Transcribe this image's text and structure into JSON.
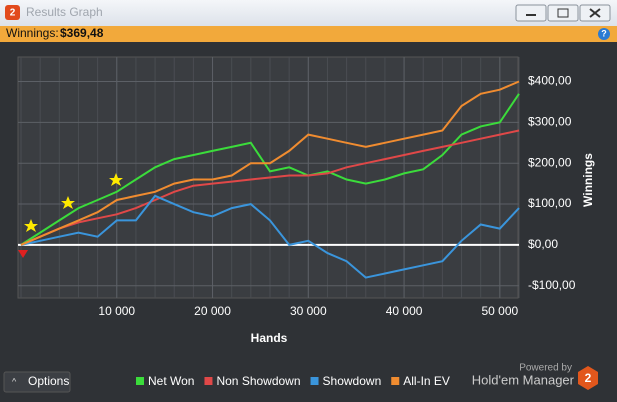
{
  "window": {
    "title": "Results Graph"
  },
  "summary": {
    "label": "Winnings:",
    "value": "$369,48"
  },
  "footer": {
    "options": "Options",
    "powered": "Powered by",
    "brand": "Hold'em Manager"
  },
  "chart_data": {
    "type": "line",
    "xlabel": "Hands",
    "ylabel": "Winnings",
    "x": [
      0,
      2000,
      4000,
      6000,
      8000,
      10000,
      12000,
      14000,
      16000,
      18000,
      20000,
      22000,
      24000,
      26000,
      28000,
      30000,
      32000,
      34000,
      36000,
      38000,
      40000,
      42000,
      44000,
      46000,
      48000,
      50000,
      52000
    ],
    "series": [
      {
        "name": "Net Won",
        "color": "#3bdc3b",
        "values": [
          0,
          30,
          60,
          90,
          110,
          130,
          160,
          190,
          210,
          220,
          230,
          240,
          250,
          180,
          190,
          170,
          180,
          160,
          150,
          160,
          175,
          185,
          220,
          270,
          290,
          300,
          370
        ]
      },
      {
        "name": "Non Showdown",
        "color": "#e04848",
        "values": [
          0,
          20,
          40,
          55,
          65,
          75,
          90,
          110,
          130,
          145,
          150,
          155,
          160,
          165,
          170,
          170,
          175,
          190,
          200,
          210,
          220,
          230,
          240,
          250,
          260,
          270,
          280
        ]
      },
      {
        "name": "Showdown",
        "color": "#3a95dc",
        "values": [
          0,
          10,
          20,
          30,
          20,
          60,
          60,
          120,
          100,
          80,
          70,
          90,
          100,
          60,
          0,
          10,
          -20,
          -40,
          -80,
          -70,
          -60,
          -50,
          -40,
          10,
          50,
          40,
          90
        ]
      },
      {
        "name": "All-In EV",
        "color": "#f08c30",
        "values": [
          0,
          20,
          40,
          60,
          80,
          110,
          120,
          130,
          150,
          160,
          160,
          170,
          200,
          200,
          230,
          270,
          260,
          250,
          240,
          250,
          260,
          270,
          280,
          340,
          370,
          380,
          400
        ]
      }
    ],
    "xlim": [
      0,
      52000
    ],
    "xticks": [
      {
        "value": 10000,
        "label": "10 000"
      },
      {
        "value": 20000,
        "label": "20 000"
      },
      {
        "value": 30000,
        "label": "30 000"
      },
      {
        "value": 40000,
        "label": "40 000"
      },
      {
        "value": 50000,
        "label": "50 000"
      }
    ],
    "ylim": [
      -130,
      460
    ],
    "yticks": [
      {
        "value": -100,
        "label": "-$100,00"
      },
      {
        "value": 0,
        "label": "$0,00"
      },
      {
        "value": 100,
        "label": "$100,00"
      },
      {
        "value": 200,
        "label": "$200,00"
      },
      {
        "value": 300,
        "label": "$300,00"
      },
      {
        "value": 400,
        "label": "$400,00"
      }
    ],
    "grid": true,
    "legend": "bottom"
  }
}
